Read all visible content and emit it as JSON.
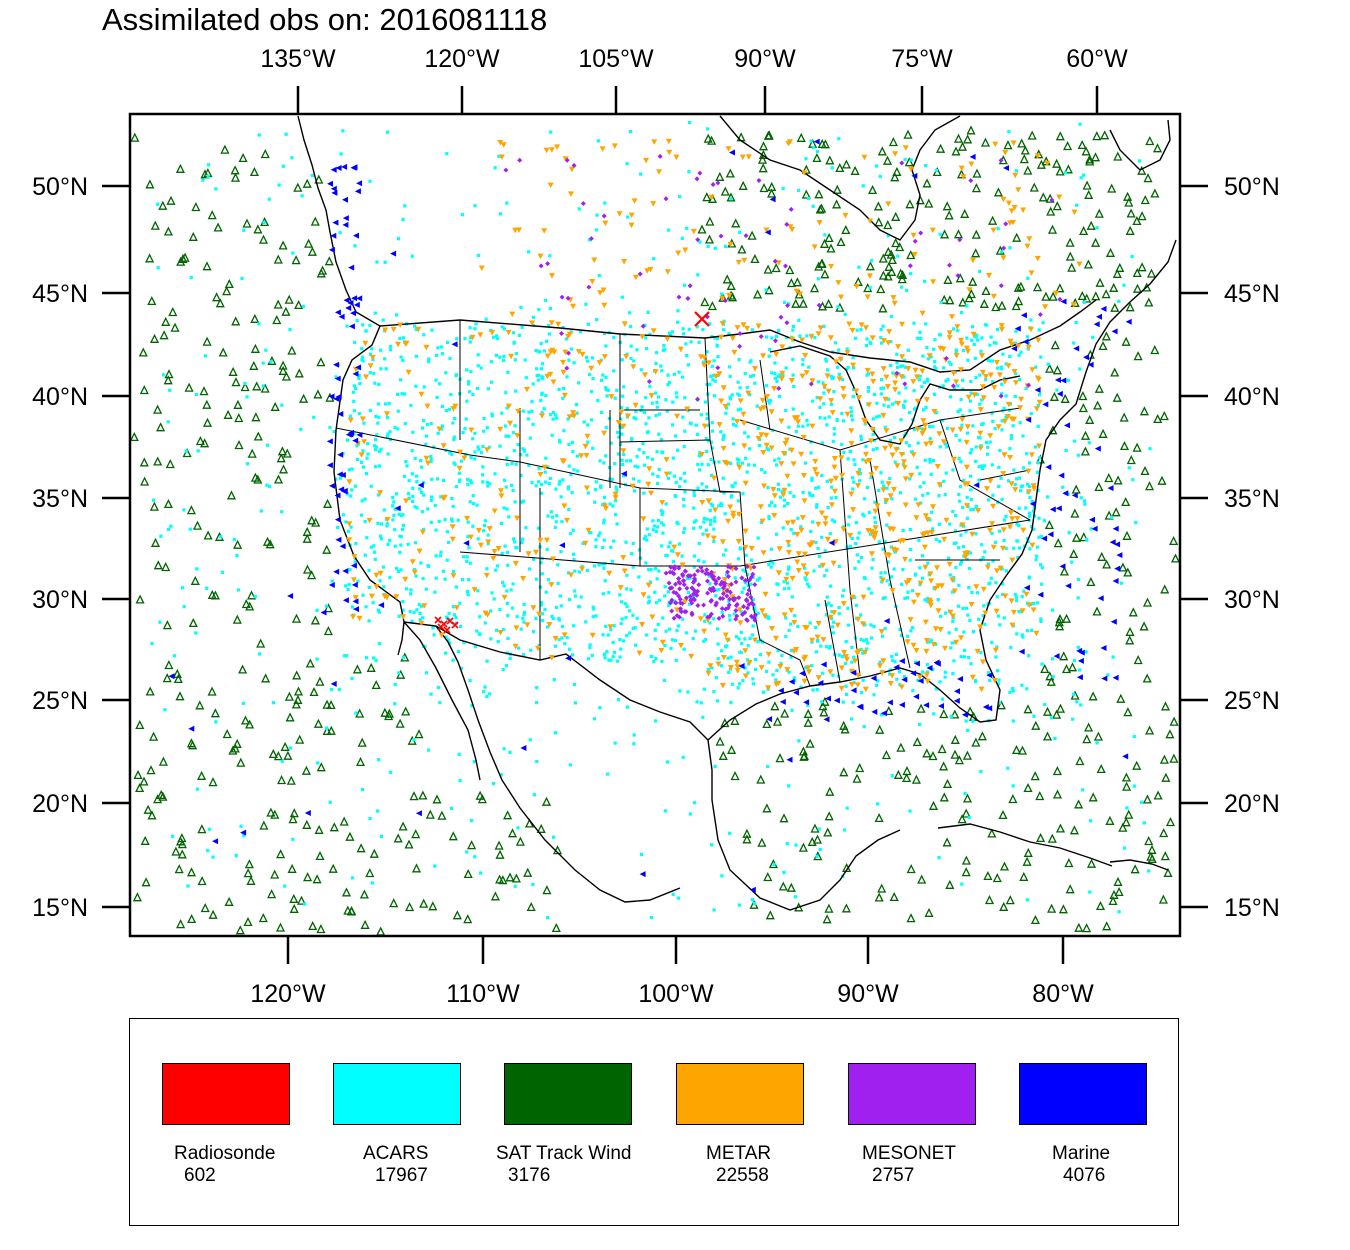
{
  "title": "Assimilated obs on: 2016081118",
  "axes": {
    "top_ticks": [
      "135°W",
      "120°W",
      "105°W",
      "90°W",
      "75°W",
      "60°W"
    ],
    "bottom_ticks": [
      "120°W",
      "110°W",
      "100°W",
      "90°W",
      "80°W"
    ],
    "left_ticks": [
      "50°N",
      "45°N",
      "40°N",
      "35°N",
      "30°N",
      "25°N",
      "20°N",
      "15°N"
    ],
    "right_ticks": [
      "50°N",
      "45°N",
      "40°N",
      "35°N",
      "30°N",
      "25°N",
      "20°N",
      "15°N"
    ]
  },
  "legend": [
    {
      "label": "Radiosonde",
      "count": "602",
      "color": "#ff0000"
    },
    {
      "label": "ACARS",
      "count": "17967",
      "color": "#00ffff"
    },
    {
      "label": "SAT Track Wind",
      "count": "3176",
      "color": "#006400"
    },
    {
      "label": "METAR",
      "count": "22558",
      "color": "#ffa500"
    },
    {
      "label": "MESONET",
      "count": "2757",
      "color": "#a020f0"
    },
    {
      "label": "Marine",
      "count": "4076",
      "color": "#0000ff"
    }
  ],
  "colors": {
    "radiosonde": "#ff0000",
    "acars": "#00ffff",
    "sat_track_wind": "#006400",
    "metar": "#ffa500",
    "mesonet": "#a020f0",
    "marine": "#0000ff",
    "frame": "#000000"
  }
}
